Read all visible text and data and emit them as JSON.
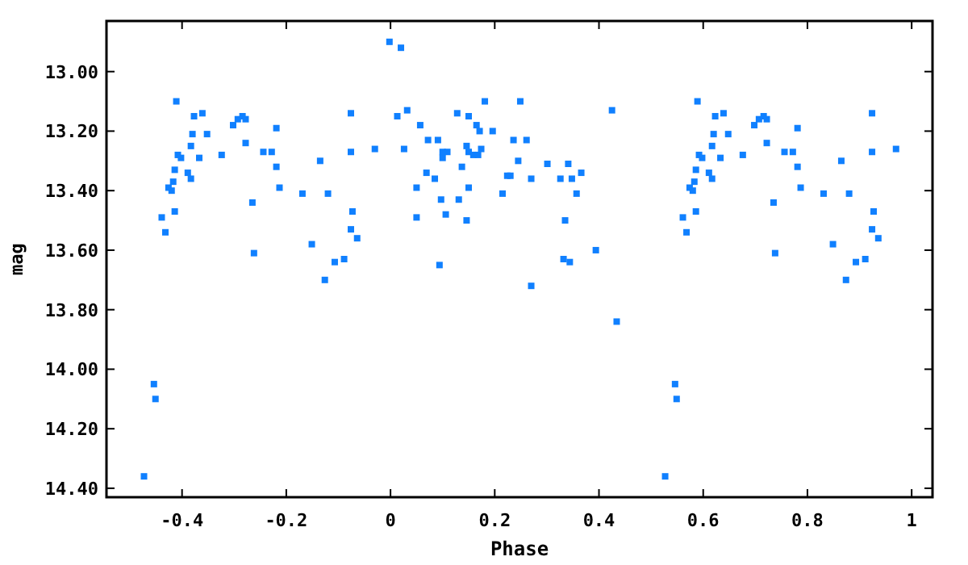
{
  "chart_data": {
    "type": "scatter",
    "xlabel": "Phase",
    "ylabel": "mag",
    "marker": "square",
    "grid": false,
    "xlim": [
      -0.545,
      1.04
    ],
    "ylim": [
      14.43,
      12.83
    ],
    "xticks": [
      -0.4,
      -0.2,
      0,
      0.2,
      0.4,
      0.6,
      0.8,
      1
    ],
    "yticks": [
      {
        "value": 13.0,
        "label": "13.00"
      },
      {
        "value": 13.2,
        "label": "13.20"
      },
      {
        "value": 13.4,
        "label": "13.40"
      },
      {
        "value": 13.6,
        "label": "13.60"
      },
      {
        "value": 13.8,
        "label": "13.80"
      },
      {
        "value": 14.0,
        "label": "14.00"
      },
      {
        "value": 14.2,
        "label": "14.20"
      },
      {
        "value": 14.4,
        "label": "14.40"
      }
    ],
    "series": [
      {
        "color": "#1080ff",
        "x": [
          -0.473,
          -0.454,
          -0.451,
          -0.439,
          -0.432,
          -0.426,
          -0.42,
          -0.417,
          -0.414,
          -0.414,
          -0.411,
          -0.408,
          -0.402,
          -0.389,
          -0.383,
          -0.383,
          -0.38,
          -0.377,
          -0.367,
          -0.361,
          -0.352,
          -0.324,
          -0.302,
          -0.293,
          -0.284,
          -0.278,
          -0.278,
          -0.265,
          -0.262,
          -0.244,
          -0.228,
          -0.219,
          -0.219,
          -0.213,
          -0.169,
          -0.151,
          -0.135,
          -0.126,
          -0.12,
          -0.107,
          -0.089,
          -0.076,
          -0.076,
          -0.076,
          -0.073,
          -0.064,
          -0.03,
          -0.002,
          0.013,
          0.02,
          0.026,
          0.032,
          0.057,
          0.05,
          0.05,
          0.072,
          0.069,
          0.085,
          0.091,
          0.1,
          0.1,
          0.109,
          0.097,
          0.106,
          0.094,
          0.128,
          0.137,
          0.131,
          0.146,
          0.15,
          0.15,
          0.15,
          0.146,
          0.159,
          0.168,
          0.165,
          0.171,
          0.174,
          0.181,
          0.196,
          0.215,
          0.224,
          0.23,
          0.236,
          0.245,
          0.249,
          0.261,
          0.27,
          0.27,
          0.301,
          0.326,
          0.341,
          0.348,
          0.357,
          0.366,
          0.335,
          0.332,
          0.344,
          0.394,
          0.425,
          0.434,
          0.527,
          0.546,
          0.549,
          0.561,
          0.568,
          0.574,
          0.58,
          0.583,
          0.586,
          0.586,
          0.589,
          0.592,
          0.598,
          0.611,
          0.617,
          0.617,
          0.62,
          0.623,
          0.633,
          0.639,
          0.648,
          0.676,
          0.698,
          0.707,
          0.716,
          0.722,
          0.722,
          0.735,
          0.738,
          0.756,
          0.772,
          0.781,
          0.781,
          0.787,
          0.831,
          0.849,
          0.865,
          0.874,
          0.88,
          0.893,
          0.911,
          0.924,
          0.924,
          0.924,
          0.927,
          0.936,
          0.97
        ],
        "values": [
          14.36,
          14.05,
          14.1,
          13.49,
          13.54,
          13.39,
          13.4,
          13.37,
          13.33,
          13.47,
          13.1,
          13.28,
          13.29,
          13.34,
          13.25,
          13.36,
          13.21,
          13.15,
          13.29,
          13.14,
          13.21,
          13.28,
          13.18,
          13.16,
          13.15,
          13.16,
          13.24,
          13.44,
          13.61,
          13.27,
          13.27,
          13.19,
          13.32,
          13.39,
          13.41,
          13.58,
          13.3,
          13.7,
          13.41,
          13.64,
          13.63,
          13.14,
          13.27,
          13.53,
          13.47,
          13.56,
          13.26,
          12.9,
          13.15,
          12.92,
          13.26,
          13.13,
          13.18,
          13.39,
          13.49,
          13.23,
          13.34,
          13.36,
          13.23,
          13.27,
          13.29,
          13.27,
          13.43,
          13.48,
          13.65,
          13.14,
          13.32,
          13.43,
          13.25,
          13.15,
          13.27,
          13.39,
          13.5,
          13.28,
          13.28,
          13.18,
          13.2,
          13.26,
          13.1,
          13.2,
          13.41,
          13.35,
          13.35,
          13.23,
          13.3,
          13.1,
          13.23,
          13.36,
          13.72,
          13.31,
          13.36,
          13.31,
          13.36,
          13.41,
          13.34,
          13.5,
          13.63,
          13.64,
          13.6,
          13.13,
          13.84,
          14.36,
          14.05,
          14.1,
          13.49,
          13.54,
          13.39,
          13.4,
          13.37,
          13.33,
          13.47,
          13.1,
          13.28,
          13.29,
          13.34,
          13.25,
          13.36,
          13.21,
          13.15,
          13.29,
          13.14,
          13.21,
          13.28,
          13.18,
          13.16,
          13.15,
          13.16,
          13.24,
          13.44,
          13.61,
          13.27,
          13.27,
          13.19,
          13.32,
          13.39,
          13.41,
          13.58,
          13.3,
          13.7,
          13.41,
          13.64,
          13.63,
          13.14,
          13.27,
          13.53,
          13.47,
          13.56,
          13.26
        ]
      }
    ]
  }
}
